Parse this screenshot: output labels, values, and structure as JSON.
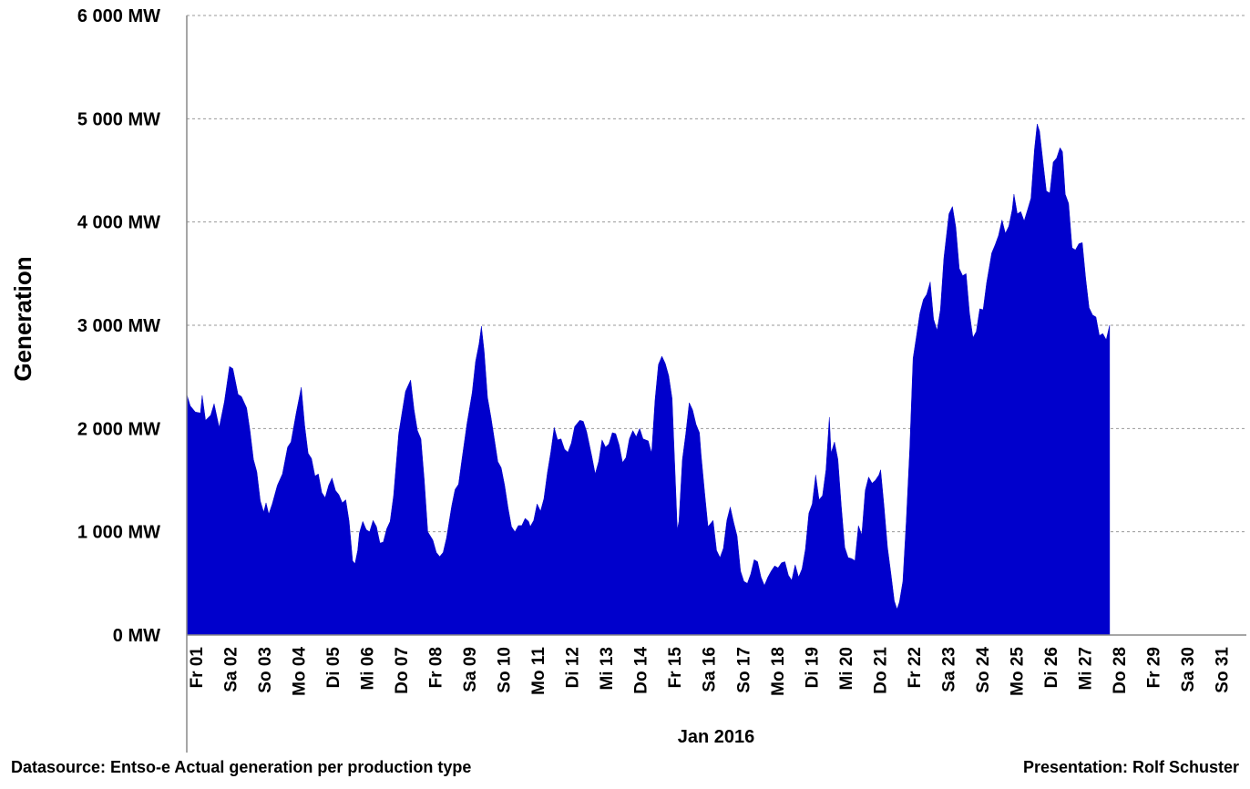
{
  "chart_data": {
    "type": "area",
    "title": "",
    "xlabel": "Jan 2016",
    "ylabel": "Generation",
    "ylim": [
      0,
      6000
    ],
    "y_ticks": [
      "0 MW",
      "1 000 MW",
      "2 000 MW",
      "3 000 MW",
      "4 000 MW",
      "5 000 MW",
      "6 000 MW"
    ],
    "y_tick_values": [
      0,
      1000,
      2000,
      3000,
      4000,
      5000,
      6000
    ],
    "grid": true,
    "color": "#0000CC",
    "categories": [
      "Fr 01",
      "Sa 02",
      "So 03",
      "Mo 04",
      "Di 05",
      "Mi 06",
      "Do 07",
      "Fr 08",
      "Sa 09",
      "So 10",
      "Mo 11",
      "Di 12",
      "Mi 13",
      "Do 14",
      "Fr 15",
      "Sa 16",
      "So 17",
      "Mo 18",
      "Di 19",
      "Mi 20",
      "Do 21",
      "Fr 22",
      "Sa 23",
      "So 24",
      "Mo 25",
      "Di 26",
      "Mi 27",
      "Do 28",
      "Fr 29",
      "Sa 30",
      "So 31"
    ],
    "x_unit": "days since Jan 01 00:00",
    "x_range": [
      0,
      31
    ],
    "series": [
      {
        "name": "Generation (MW)",
        "points": [
          [
            0.0,
            2330
          ],
          [
            0.1,
            2220
          ],
          [
            0.25,
            2160
          ],
          [
            0.4,
            2150
          ],
          [
            0.45,
            2320
          ],
          [
            0.55,
            2080
          ],
          [
            0.7,
            2130
          ],
          [
            0.8,
            2240
          ],
          [
            0.95,
            2010
          ],
          [
            1.1,
            2260
          ],
          [
            1.25,
            2600
          ],
          [
            1.35,
            2580
          ],
          [
            1.5,
            2330
          ],
          [
            1.6,
            2310
          ],
          [
            1.75,
            2200
          ],
          [
            1.85,
            1980
          ],
          [
            1.95,
            1700
          ],
          [
            2.05,
            1580
          ],
          [
            2.15,
            1300
          ],
          [
            2.25,
            1190
          ],
          [
            2.32,
            1280
          ],
          [
            2.4,
            1170
          ],
          [
            2.5,
            1270
          ],
          [
            2.65,
            1450
          ],
          [
            2.8,
            1560
          ],
          [
            2.95,
            1820
          ],
          [
            3.05,
            1870
          ],
          [
            3.2,
            2150
          ],
          [
            3.35,
            2400
          ],
          [
            3.45,
            2030
          ],
          [
            3.55,
            1760
          ],
          [
            3.65,
            1710
          ],
          [
            3.75,
            1540
          ],
          [
            3.85,
            1560
          ],
          [
            3.95,
            1380
          ],
          [
            4.05,
            1330
          ],
          [
            4.15,
            1450
          ],
          [
            4.25,
            1520
          ],
          [
            4.35,
            1400
          ],
          [
            4.45,
            1360
          ],
          [
            4.55,
            1280
          ],
          [
            4.65,
            1310
          ],
          [
            4.75,
            1100
          ],
          [
            4.85,
            720
          ],
          [
            4.92,
            690
          ],
          [
            5.0,
            820
          ],
          [
            5.05,
            990
          ],
          [
            5.15,
            1100
          ],
          [
            5.25,
            1020
          ],
          [
            5.35,
            1000
          ],
          [
            5.45,
            1110
          ],
          [
            5.55,
            1050
          ],
          [
            5.65,
            890
          ],
          [
            5.75,
            900
          ],
          [
            5.85,
            1030
          ],
          [
            5.95,
            1100
          ],
          [
            6.05,
            1350
          ],
          [
            6.2,
            1950
          ],
          [
            6.3,
            2160
          ],
          [
            6.4,
            2360
          ],
          [
            6.55,
            2470
          ],
          [
            6.65,
            2180
          ],
          [
            6.75,
            1980
          ],
          [
            6.85,
            1900
          ],
          [
            6.95,
            1500
          ],
          [
            7.05,
            1000
          ],
          [
            7.2,
            920
          ],
          [
            7.3,
            800
          ],
          [
            7.4,
            760
          ],
          [
            7.5,
            800
          ],
          [
            7.6,
            940
          ],
          [
            7.75,
            1250
          ],
          [
            7.85,
            1410
          ],
          [
            7.95,
            1460
          ],
          [
            8.05,
            1700
          ],
          [
            8.2,
            2050
          ],
          [
            8.35,
            2350
          ],
          [
            8.45,
            2650
          ],
          [
            8.55,
            2820
          ],
          [
            8.62,
            2990
          ],
          [
            8.7,
            2750
          ],
          [
            8.8,
            2300
          ],
          [
            8.9,
            2110
          ],
          [
            9.0,
            1900
          ],
          [
            9.1,
            1680
          ],
          [
            9.2,
            1620
          ],
          [
            9.3,
            1450
          ],
          [
            9.4,
            1230
          ],
          [
            9.5,
            1050
          ],
          [
            9.6,
            1000
          ],
          [
            9.7,
            1060
          ],
          [
            9.8,
            1060
          ],
          [
            9.9,
            1130
          ],
          [
            10.0,
            1100
          ],
          [
            10.05,
            1050
          ],
          [
            10.15,
            1110
          ],
          [
            10.25,
            1270
          ],
          [
            10.35,
            1200
          ],
          [
            10.45,
            1320
          ],
          [
            10.55,
            1570
          ],
          [
            10.65,
            1770
          ],
          [
            10.75,
            2010
          ],
          [
            10.85,
            1890
          ],
          [
            10.95,
            1900
          ],
          [
            11.05,
            1800
          ],
          [
            11.15,
            1770
          ],
          [
            11.25,
            1860
          ],
          [
            11.35,
            2020
          ],
          [
            11.5,
            2080
          ],
          [
            11.6,
            2070
          ],
          [
            11.7,
            1970
          ],
          [
            11.85,
            1730
          ],
          [
            11.95,
            1560
          ],
          [
            12.05,
            1680
          ],
          [
            12.15,
            1890
          ],
          [
            12.25,
            1820
          ],
          [
            12.35,
            1850
          ],
          [
            12.45,
            1960
          ],
          [
            12.55,
            1950
          ],
          [
            12.65,
            1840
          ],
          [
            12.75,
            1670
          ],
          [
            12.85,
            1720
          ],
          [
            12.95,
            1900
          ],
          [
            13.05,
            1980
          ],
          [
            13.15,
            1920
          ],
          [
            13.25,
            2000
          ],
          [
            13.35,
            1900
          ],
          [
            13.5,
            1880
          ],
          [
            13.6,
            1760
          ],
          [
            13.7,
            2280
          ],
          [
            13.8,
            2620
          ],
          [
            13.9,
            2700
          ],
          [
            14.0,
            2630
          ],
          [
            14.1,
            2510
          ],
          [
            14.2,
            2290
          ],
          [
            14.3,
            1450
          ],
          [
            14.35,
            1020
          ],
          [
            14.4,
            1100
          ],
          [
            14.5,
            1700
          ],
          [
            14.6,
            1950
          ],
          [
            14.7,
            2250
          ],
          [
            14.8,
            2180
          ],
          [
            14.9,
            2040
          ],
          [
            15.0,
            1960
          ],
          [
            15.05,
            1740
          ],
          [
            15.15,
            1380
          ],
          [
            15.25,
            1050
          ],
          [
            15.4,
            1110
          ],
          [
            15.5,
            820
          ],
          [
            15.6,
            750
          ],
          [
            15.7,
            840
          ],
          [
            15.8,
            1110
          ],
          [
            15.9,
            1240
          ],
          [
            16.0,
            1090
          ],
          [
            16.1,
            960
          ],
          [
            16.2,
            620
          ],
          [
            16.3,
            520
          ],
          [
            16.4,
            500
          ],
          [
            16.5,
            590
          ],
          [
            16.6,
            730
          ],
          [
            16.7,
            710
          ],
          [
            16.8,
            560
          ],
          [
            16.9,
            480
          ],
          [
            17.0,
            560
          ],
          [
            17.1,
            620
          ],
          [
            17.2,
            670
          ],
          [
            17.3,
            650
          ],
          [
            17.4,
            700
          ],
          [
            17.5,
            710
          ],
          [
            17.6,
            580
          ],
          [
            17.7,
            530
          ],
          [
            17.8,
            680
          ],
          [
            17.9,
            560
          ],
          [
            18.0,
            640
          ],
          [
            18.1,
            830
          ],
          [
            18.2,
            1180
          ],
          [
            18.3,
            1270
          ],
          [
            18.4,
            1550
          ],
          [
            18.5,
            1310
          ],
          [
            18.6,
            1350
          ],
          [
            18.7,
            1600
          ],
          [
            18.8,
            2110
          ],
          [
            18.85,
            1760
          ],
          [
            18.95,
            1870
          ],
          [
            19.05,
            1700
          ],
          [
            19.15,
            1250
          ],
          [
            19.25,
            850
          ],
          [
            19.35,
            750
          ],
          [
            19.45,
            740
          ],
          [
            19.55,
            720
          ],
          [
            19.65,
            1060
          ],
          [
            19.75,
            970
          ],
          [
            19.85,
            1400
          ],
          [
            19.95,
            1530
          ],
          [
            20.05,
            1470
          ],
          [
            20.15,
            1500
          ],
          [
            20.25,
            1550
          ],
          [
            20.3,
            1600
          ],
          [
            20.4,
            1250
          ],
          [
            20.5,
            850
          ],
          [
            20.6,
            600
          ],
          [
            20.7,
            330
          ],
          [
            20.78,
            250
          ],
          [
            20.85,
            320
          ],
          [
            20.95,
            520
          ],
          [
            21.05,
            1100
          ],
          [
            21.15,
            1800
          ],
          [
            21.25,
            2680
          ],
          [
            21.35,
            2900
          ],
          [
            21.45,
            3120
          ],
          [
            21.55,
            3250
          ],
          [
            21.65,
            3300
          ],
          [
            21.75,
            3420
          ],
          [
            21.85,
            3060
          ],
          [
            21.95,
            2950
          ],
          [
            22.05,
            3150
          ],
          [
            22.15,
            3650
          ],
          [
            22.3,
            4080
          ],
          [
            22.4,
            4150
          ],
          [
            22.5,
            3950
          ],
          [
            22.6,
            3550
          ],
          [
            22.7,
            3480
          ],
          [
            22.8,
            3500
          ],
          [
            22.9,
            3120
          ],
          [
            23.0,
            2880
          ],
          [
            23.1,
            2940
          ],
          [
            23.2,
            3160
          ],
          [
            23.3,
            3150
          ],
          [
            23.4,
            3410
          ],
          [
            23.55,
            3700
          ],
          [
            23.65,
            3780
          ],
          [
            23.75,
            3870
          ],
          [
            23.85,
            4020
          ],
          [
            23.95,
            3890
          ],
          [
            24.05,
            3960
          ],
          [
            24.15,
            4120
          ],
          [
            24.2,
            4270
          ],
          [
            24.3,
            4080
          ],
          [
            24.4,
            4100
          ],
          [
            24.5,
            4010
          ],
          [
            24.6,
            4120
          ],
          [
            24.7,
            4230
          ],
          [
            24.8,
            4700
          ],
          [
            24.88,
            4950
          ],
          [
            24.95,
            4880
          ],
          [
            25.05,
            4580
          ],
          [
            25.15,
            4300
          ],
          [
            25.25,
            4280
          ],
          [
            25.35,
            4580
          ],
          [
            25.45,
            4620
          ],
          [
            25.55,
            4720
          ],
          [
            25.62,
            4680
          ],
          [
            25.7,
            4270
          ],
          [
            25.8,
            4180
          ],
          [
            25.9,
            3750
          ],
          [
            26.0,
            3730
          ],
          [
            26.1,
            3790
          ],
          [
            26.2,
            3800
          ],
          [
            26.3,
            3450
          ],
          [
            26.4,
            3170
          ],
          [
            26.5,
            3100
          ],
          [
            26.6,
            3080
          ],
          [
            26.7,
            2900
          ],
          [
            26.8,
            2920
          ],
          [
            26.9,
            2860
          ],
          [
            27.0,
            3000
          ]
        ]
      }
    ]
  },
  "footer": {
    "source": "Datasource: Entso-e  Actual generation per production type",
    "credit": "Presentation: Rolf Schuster"
  }
}
